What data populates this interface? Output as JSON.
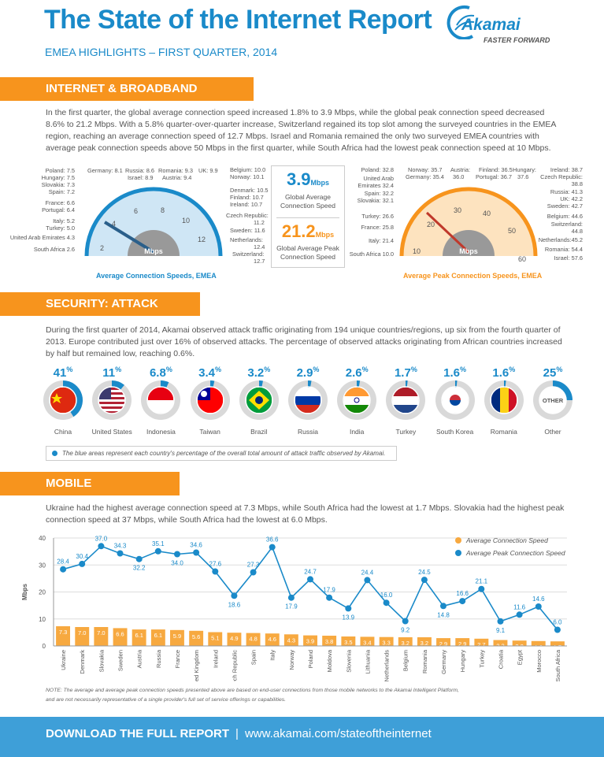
{
  "header": {
    "title": "The State of the Internet Report",
    "subtitle": "EMEA HIGHLIGHTS – FIRST QUARTER, 2014",
    "logo_name": "Akamai",
    "logo_tagline": "FASTER FORWARD"
  },
  "broadband": {
    "heading": "INTERNET & BROADBAND ADOPTION",
    "text": "In the first quarter, the global average connection speed increased 1.8% to 3.9 Mbps, while the global peak connection speed decreased 8.6% to 21.2 Mbps. With a 5.8% quarter-over-quarter increase, Switzerland regained its top slot among the surveyed countries in the EMEA region, reaching an average connection speed of 12.7 Mbps. Israel and Romania remained the only two surveyed EMEA countries with average peak connection speeds above 50 Mbps in the first quarter, while South Africa had the lowest peak connection speed at 10 Mbps.",
    "avg_gauge": {
      "caption": "Average Connection Speeds, EMEA",
      "unit": "Mbps",
      "ticks": [
        "2",
        "4",
        "6",
        "8",
        "10",
        "12"
      ],
      "global_value": 3.9,
      "labels": [
        "Poland: 7.5",
        "Hungary: 7.5",
        "Slovakia: 7.3",
        "Spain: 7.2",
        "France: 6.6",
        "Portugal: 6.4",
        "Italy: 5.2",
        "Turkey: 5.0",
        "United Arab Emirates 4.3",
        "South Africa 2.6",
        "Germany: 8.1",
        "Russia: 8.6",
        "Israel: 8.9",
        "Romania: 9.3",
        "Austria: 9.4",
        "UK: 9.9",
        "Belgium: 10.0",
        "Norway: 10.1",
        "Denmark: 10.5",
        "Finland: 10.7",
        "Ireland: 10.7",
        "Czech Republic:",
        "11.2",
        "Sweden: 11.6",
        "Netherlands:",
        "12.4",
        "Switzerland:",
        "12.7"
      ]
    },
    "peak_gauge": {
      "caption": "Average Peak Connection Speeds, EMEA",
      "unit": "Mbps",
      "ticks": [
        "10",
        "20",
        "30",
        "40",
        "50",
        "60"
      ],
      "global_value": 21.2,
      "labels": [
        "Poland: 32.8",
        "United Arab",
        "Emirates 32.4",
        "Spain: 32.2",
        "Slovakia: 32.1",
        "Turkey: 26.6",
        "France: 25.8",
        "Italy: 21.4",
        "South Africa 10.0",
        "Norway: 35.7",
        "Germany: 35.4",
        "Austria:",
        "36.0",
        "Finland: 36.5",
        "Portugal: 36.7",
        "Hungary:",
        "37.6",
        "Ireland: 38.7",
        "Czech Republic:",
        "38.8",
        "Russia: 41.3",
        "UK: 42.2",
        "Sweden: 42.7",
        "Belgium: 44.6",
        "Switzerland:",
        "44.8",
        "Netherlands:45.2",
        "Romania: 54.4",
        "Israel: 57.6"
      ]
    },
    "center": {
      "avg_value": "3.9",
      "avg_unit": "Mbps",
      "avg_caption_1": "Global Average",
      "avg_caption_2": "Connection Speed",
      "peak_value": "21.2",
      "peak_unit": "Mbps",
      "peak_caption_1": "Global Average Peak",
      "peak_caption_2": "Connection Speed"
    }
  },
  "security": {
    "heading": "SECURITY: ATTACK TRAFFIC",
    "text": "During the first quarter of 2014, Akamai observed attack traffic originating from 194 unique countries/regions, up six from the fourth quarter of 2013. Europe contributed just over 16% of observed attacks. The percentage of observed attacks originating from African countries increased by half but remained low, reaching 0.6%.",
    "items": [
      {
        "name": "China",
        "pct": "41",
        "value": 41,
        "flag": "china"
      },
      {
        "name": "United States",
        "pct": "11",
        "value": 11,
        "flag": "us"
      },
      {
        "name": "Indonesia",
        "pct": "6.8",
        "value": 6.8,
        "flag": "indonesia"
      },
      {
        "name": "Taiwan",
        "pct": "3.4",
        "value": 3.4,
        "flag": "taiwan"
      },
      {
        "name": "Brazil",
        "pct": "3.2",
        "value": 3.2,
        "flag": "brazil"
      },
      {
        "name": "Russia",
        "pct": "2.9",
        "value": 2.9,
        "flag": "russia"
      },
      {
        "name": "India",
        "pct": "2.6",
        "value": 2.6,
        "flag": "india"
      },
      {
        "name": "Turkey",
        "pct": "1.7",
        "value": 1.7,
        "flag": "netherlands"
      },
      {
        "name": "South Korea",
        "pct": "1.6",
        "value": 1.6,
        "flag": "korea"
      },
      {
        "name": "Romania",
        "pct": "1.6",
        "value": 1.6,
        "flag": "romania"
      },
      {
        "name": "Other",
        "pct": "25",
        "value": 25,
        "flag": "other",
        "inner_label": "OTHER"
      }
    ],
    "pct_sign": "%",
    "legend": "The blue areas represent each country's percentage of the overall total amount of attack traffic observed by Akamai."
  },
  "mobile": {
    "heading": "MOBILE CONNECTIVITY",
    "text": "Ukraine had the highest average connection speed at 7.3 Mbps, while South Africa had the lowest at 1.7 Mbps. Slovakia had the highest peak connection speed at 37 Mbps, while South Africa had the lowest at 6.0 Mbps.",
    "note_1": "NOTE: The average and average peak connection speeds presented above are based on end-user connections from those mobile networks to the Akamai Intelligent Platform,",
    "note_2": "and are not necessarily representative of a single provider's full set of service offerings or capabilities."
  },
  "chart_data": {
    "type": "bar",
    "ylabel": "Mbps",
    "ylim": [
      0,
      40
    ],
    "yticks": [
      0,
      10,
      20,
      30,
      40
    ],
    "categories": [
      "Ukraine",
      "Denmark",
      "Slovakia",
      "Sweden",
      "Austria",
      "Russia",
      "France",
      "United Kingdom",
      "Ireland",
      "Czech Republic",
      "Spain",
      "Italy",
      "Norway",
      "Poland",
      "Moldova",
      "Slovenia",
      "Lithuania",
      "Netherlands",
      "Belgium",
      "Romania",
      "Germany",
      "Hungary",
      "Turkey",
      "Croatia",
      "Egypt",
      "Morocco",
      "South Africa"
    ],
    "series": [
      {
        "name": "Average Connection Speed",
        "kind": "bar",
        "color": "#f7a940",
        "values": [
          7.3,
          7.0,
          7.0,
          6.6,
          6.1,
          6.1,
          5.9,
          5.6,
          5.1,
          4.9,
          4.8,
          4.6,
          4.3,
          3.9,
          3.8,
          3.5,
          3.4,
          3.3,
          3.2,
          3.2,
          2.9,
          2.9,
          2.7,
          2.2,
          2.0,
          1.8,
          1.7
        ]
      },
      {
        "name": "Average Peak Connection Speed",
        "kind": "line",
        "color": "#1a8ac9",
        "values": [
          28.4,
          30.4,
          37.0,
          34.3,
          32.2,
          35.1,
          34.0,
          34.6,
          27.6,
          18.6,
          27.3,
          36.6,
          17.9,
          24.7,
          17.9,
          13.9,
          24.4,
          16.0,
          9.2,
          24.5,
          14.8,
          16.6,
          21.1,
          9.1,
          11.6,
          14.6,
          6.0
        ]
      }
    ],
    "legend_position": "top-right"
  },
  "footer": {
    "label": "DOWNLOAD THE FULL REPORT",
    "divider": "|",
    "url": "www.akamai.com/stateoftheinternet"
  },
  "colors": {
    "blue": "#1a8ac9",
    "orange": "#f7941d",
    "footer_blue": "#3e9fd8"
  }
}
